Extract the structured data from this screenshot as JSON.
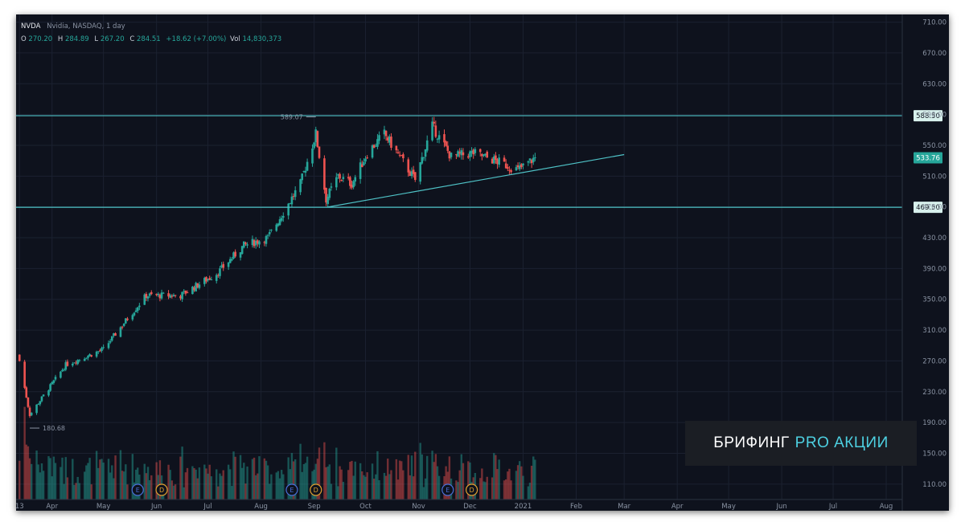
{
  "header": {
    "symbol": "NVDA",
    "name": "Nvidia, NASDAQ, 1 day",
    "o_label": "O",
    "o_value": "270.20",
    "h_label": "H",
    "h_value": "284.89",
    "l_label": "L",
    "l_value": "267.20",
    "c_label": "C",
    "c_value": "284.51",
    "change": "+18.62 (+7.00%)",
    "vol_label": "Vol",
    "vol_value": "14,830,373"
  },
  "brand": {
    "part1": "БРИФИНГ",
    "part2": "PRO АКЦИИ"
  },
  "colors": {
    "up": "#26a69a",
    "down": "#ef5350",
    "level": "#4fc3c7",
    "background": "#0e121d"
  },
  "chart_data": {
    "type": "candlestick",
    "ylim": [
      90,
      720
    ],
    "y_ticks": [
      "710.00",
      "670.00",
      "630.00",
      "590.00",
      "550.00",
      "510.00",
      "470.00",
      "430.00",
      "390.00",
      "350.00",
      "310.00",
      "270.00",
      "230.00",
      "190.00",
      "150.00",
      "110.00"
    ],
    "x_ticks": [
      "13",
      "Apr",
      "May",
      "Jun",
      "Jul",
      "Aug",
      "Sep",
      "Oct",
      "Nov",
      "Dec",
      "2021",
      "Feb",
      "Mar",
      "Apr",
      "May",
      "Jun",
      "Jul",
      "Aug"
    ],
    "price_path": [
      {
        "date": "2020-03-13",
        "close": 270
      },
      {
        "date": "2020-03-19",
        "close": 200
      },
      {
        "date": "2020-04-09",
        "close": 265
      },
      {
        "date": "2020-05-01",
        "close": 285
      },
      {
        "date": "2020-05-15",
        "close": 325
      },
      {
        "date": "2020-05-26",
        "close": 355
      },
      {
        "date": "2020-06-15",
        "close": 355
      },
      {
        "date": "2020-07-07",
        "close": 385
      },
      {
        "date": "2020-07-22",
        "close": 420
      },
      {
        "date": "2020-08-05",
        "close": 430
      },
      {
        "date": "2020-08-24",
        "close": 500
      },
      {
        "date": "2020-09-02",
        "close": 565
      },
      {
        "date": "2020-09-08",
        "close": 480
      },
      {
        "date": "2020-09-15",
        "close": 510
      },
      {
        "date": "2020-09-23",
        "close": 500
      },
      {
        "date": "2020-10-02",
        "close": 540
      },
      {
        "date": "2020-10-12",
        "close": 565
      },
      {
        "date": "2020-10-21",
        "close": 535
      },
      {
        "date": "2020-10-30",
        "close": 505
      },
      {
        "date": "2020-11-09",
        "close": 575
      },
      {
        "date": "2020-11-20",
        "close": 535
      },
      {
        "date": "2020-12-03",
        "close": 540
      },
      {
        "date": "2020-12-16",
        "close": 530
      },
      {
        "date": "2020-12-29",
        "close": 518
      },
      {
        "date": "2021-01-08",
        "close": 533.76
      }
    ],
    "annotations": {
      "high_label": "589.07",
      "low_label": "180.68"
    },
    "levels": [
      {
        "label": "588.50",
        "value": 588.5
      },
      {
        "label": "469.50",
        "value": 469.5
      }
    ],
    "trendline": {
      "from": {
        "date": "2020-09-08",
        "value": 469.5
      },
      "to": {
        "date": "2021-03-01",
        "value": 538
      }
    },
    "last_price": {
      "label": "533.76",
      "value": 533.76
    },
    "events": [
      "E",
      "D",
      "E",
      "D",
      "E",
      "D"
    ]
  }
}
